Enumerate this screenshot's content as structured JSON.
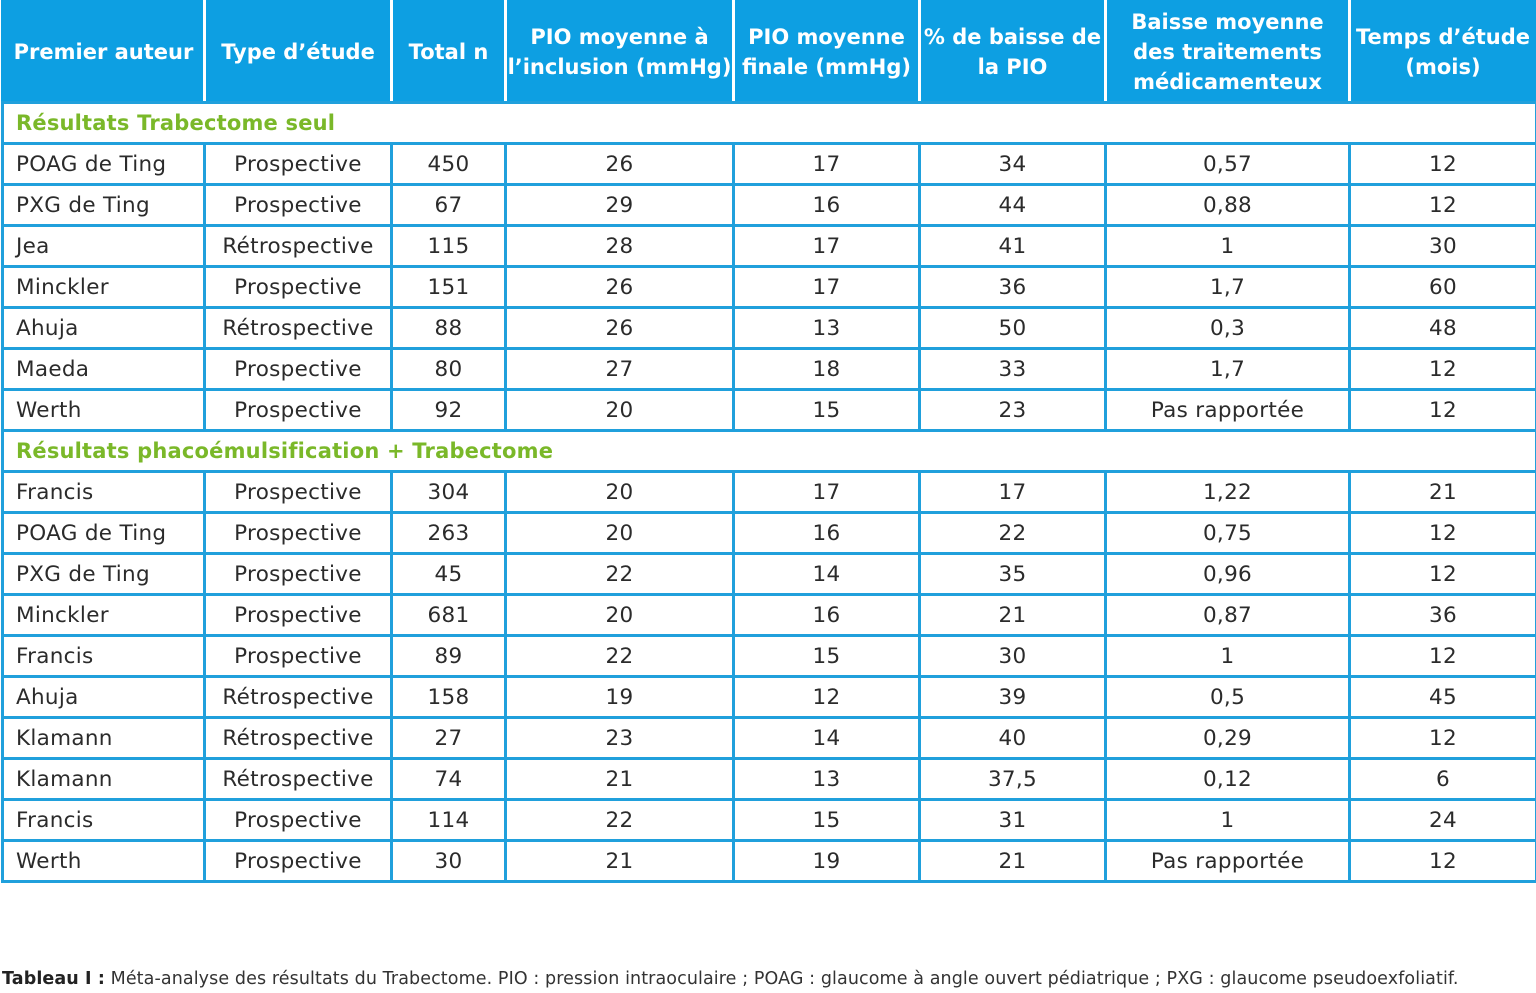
{
  "table": {
    "headers": [
      "Premier auteur",
      "Type d’étude",
      "Total n",
      "PIO moyenne à l’inclusion (mmHg)",
      "PIO moyenne finale (mmHg)",
      "% de baisse de la PIO",
      "Baisse moyenne des traitements médicamenteux",
      "Temps d’étude (mois)"
    ],
    "sections": [
      {
        "title": "Résultats Trabectome seul",
        "rows": [
          [
            "POAG de Ting",
            "Prospective",
            "450",
            "26",
            "17",
            "34",
            "0,57",
            "12"
          ],
          [
            "PXG de Ting",
            "Prospective",
            "67",
            "29",
            "16",
            "44",
            "0,88",
            "12"
          ],
          [
            "Jea",
            "Rétrospective",
            "115",
            "28",
            "17",
            "41",
            "1",
            "30"
          ],
          [
            "Minckler",
            "Prospective",
            "151",
            "26",
            "17",
            "36",
            "1,7",
            "60"
          ],
          [
            "Ahuja",
            "Rétrospective",
            "88",
            "26",
            "13",
            "50",
            "0,3",
            "48"
          ],
          [
            "Maeda",
            "Prospective",
            "80",
            "27",
            "18",
            "33",
            "1,7",
            "12"
          ],
          [
            "Werth",
            "Prospective",
            "92",
            "20",
            "15",
            "23",
            "Pas rapportée",
            "12"
          ]
        ]
      },
      {
        "title": "Résultats phacoémulsification + Trabectome",
        "rows": [
          [
            "Francis",
            "Prospective",
            "304",
            "20",
            "17",
            "17",
            "1,22",
            "21"
          ],
          [
            "POAG de Ting",
            "Prospective",
            "263",
            "20",
            "16",
            "22",
            "0,75",
            "12"
          ],
          [
            "PXG de Ting",
            "Prospective",
            "45",
            "22",
            "14",
            "35",
            "0,96",
            "12"
          ],
          [
            "Minckler",
            "Prospective",
            "681",
            "20",
            "16",
            "21",
            "0,87",
            "36"
          ],
          [
            "Francis",
            "Prospective",
            "89",
            "22",
            "15",
            "30",
            "1",
            "12"
          ],
          [
            "Ahuja",
            "Rétrospective",
            "158",
            "19",
            "12",
            "39",
            "0,5",
            "45"
          ],
          [
            "Klamann",
            "Rétrospective",
            "27",
            "23",
            "14",
            "40",
            "0,29",
            "12"
          ],
          [
            "Klamann",
            "Rétrospective",
            "74",
            "21",
            "13",
            "37,5",
            "0,12",
            "6"
          ],
          [
            "Francis",
            "Prospective",
            "114",
            "22",
            "15",
            "31",
            "1",
            "24"
          ],
          [
            "Werth",
            "Prospective",
            "30",
            "21",
            "19",
            "21",
            "Pas rapportée",
            "12"
          ]
        ]
      }
    ]
  },
  "caption": {
    "label": "Tableau I :",
    "text": " Méta-analyse des résultats du Trabectome. PIO : pression intraoculaire ; POAG : glaucome à angle ouvert pédiatrique ; PXG : glaucome pseudoexfoliatif."
  },
  "colors": {
    "header_bg": "#0d9fe2",
    "header_text": "#ffffff",
    "grid": "#20a0dc",
    "section_title": "#7ab829",
    "body_text": "#2b2b2b"
  }
}
